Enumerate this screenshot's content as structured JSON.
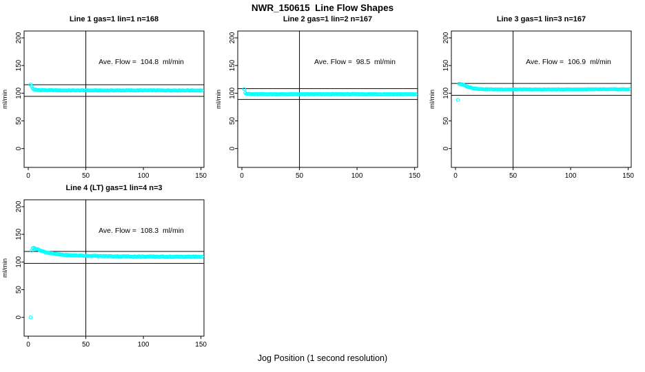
{
  "figure": {
    "title": "NWR_150615  Line Flow Shapes",
    "x_axis_label": "Jog Position (1 second resolution)"
  },
  "colors": {
    "marker": "#00FFFF",
    "axis": "#000000",
    "text": "#000000",
    "background": "#FFFFFF"
  },
  "chart_data": [
    {
      "type": "scatter",
      "title": "Line 1 gas=1 lin=1 n=168",
      "n": 168,
      "annotation": "Ave. Flow =  104.8  ml/min",
      "ave_flow": 104.8,
      "ref_line_upper": 115.3,
      "ref_line_lower": 94.3,
      "vline_x": 50,
      "ylabel": "ml/min",
      "x_ticks": [
        0,
        50,
        100,
        150
      ],
      "y_ticks": [
        0,
        50,
        100,
        150,
        200
      ],
      "xlim": [
        -3.6,
        152.6
      ],
      "ylim": [
        -34,
        212.4
      ],
      "x_range": [
        2,
        151
      ],
      "curve_keypoints": [
        [
          2,
          116
        ],
        [
          2.9,
          112.5
        ],
        [
          4,
          108
        ],
        [
          5,
          106.8
        ],
        [
          8,
          105.8
        ],
        [
          15,
          105.4
        ],
        [
          30,
          105.2
        ],
        [
          60,
          105.1
        ],
        [
          100,
          105.2
        ],
        [
          151,
          105.1
        ]
      ],
      "noise": 0.9,
      "n_points": 166,
      "seed": 1,
      "outliers": []
    },
    {
      "type": "scatter",
      "title": "Line 2 gas=1 lin=2 n=167",
      "n": 167,
      "annotation": "Ave. Flow =  98.5  ml/min",
      "ave_flow": 98.5,
      "ref_line_upper": 108.4,
      "ref_line_lower": 88.7,
      "vline_x": 50,
      "ylabel": "ml/min",
      "x_ticks": [
        0,
        50,
        100,
        150
      ],
      "y_ticks": [
        0,
        50,
        100,
        150,
        200
      ],
      "xlim": [
        -3.6,
        152.6
      ],
      "ylim": [
        -34,
        212.4
      ],
      "x_range": [
        2,
        151
      ],
      "curve_keypoints": [
        [
          2,
          108
        ],
        [
          3,
          100.5
        ],
        [
          4,
          99
        ],
        [
          7,
          98.5
        ],
        [
          15,
          98.4
        ],
        [
          40,
          98.3
        ],
        [
          80,
          98.4
        ],
        [
          120,
          98.3
        ],
        [
          151,
          98.3
        ]
      ],
      "noise": 0.9,
      "n_points": 165,
      "seed": 2,
      "outliers": []
    },
    {
      "type": "scatter",
      "title": "Line 3 gas=1 lin=3 n=167",
      "n": 167,
      "annotation": "Ave. Flow =  106.9  ml/min",
      "ave_flow": 106.9,
      "ref_line_upper": 117.6,
      "ref_line_lower": 96.2,
      "vline_x": 50,
      "ylabel": "ml/min",
      "x_ticks": [
        0,
        50,
        100,
        150
      ],
      "y_ticks": [
        0,
        50,
        100,
        150,
        200
      ],
      "xlim": [
        -3.6,
        152.6
      ],
      "ylim": [
        -34,
        212.4
      ],
      "x_range": [
        3,
        151
      ],
      "curve_keypoints": [
        [
          3,
          117.2
        ],
        [
          5,
          116.5
        ],
        [
          7,
          114.8
        ],
        [
          10,
          112
        ],
        [
          14,
          109.8
        ],
        [
          19,
          108
        ],
        [
          25,
          107.2
        ],
        [
          35,
          106.9
        ],
        [
          70,
          106.8
        ],
        [
          100,
          106.9
        ],
        [
          151,
          107.1
        ]
      ],
      "noise": 0.9,
      "n_points": 165,
      "seed": 3,
      "outliers": [
        [
          2,
          88
        ]
      ]
    },
    {
      "type": "scatter",
      "title": "Line 4 (LT) gas=1 lin=4 n=3",
      "n": 3,
      "annotation": "Ave. Flow =  108.3  ml/min",
      "ave_flow": 108.3,
      "ref_line_upper": 119.1,
      "ref_line_lower": 97.5,
      "vline_x": 50,
      "ylabel": "ml/min",
      "x_ticks": [
        0,
        50,
        100,
        150
      ],
      "y_ticks": [
        0,
        50,
        100,
        150,
        200
      ],
      "xlim": [
        -3.6,
        152.6
      ],
      "ylim": [
        -34,
        212.4
      ],
      "x_range": [
        3,
        151
      ],
      "curve_keypoints": [
        [
          3,
          121
        ],
        [
          4,
          124.8
        ],
        [
          5,
          125.8
        ],
        [
          6,
          125
        ],
        [
          8,
          123
        ],
        [
          11,
          120.5
        ],
        [
          15,
          117.8
        ],
        [
          20,
          115.5
        ],
        [
          27,
          113.5
        ],
        [
          35,
          112.3
        ],
        [
          45,
          111.6
        ],
        [
          60,
          110.8
        ],
        [
          80,
          110.2
        ],
        [
          105,
          109.8
        ],
        [
          130,
          109.6
        ],
        [
          151,
          109.7
        ]
      ],
      "noise": 1.3,
      "n_points": 160,
      "seed": 4,
      "outliers": [
        [
          2,
          0
        ]
      ]
    }
  ]
}
